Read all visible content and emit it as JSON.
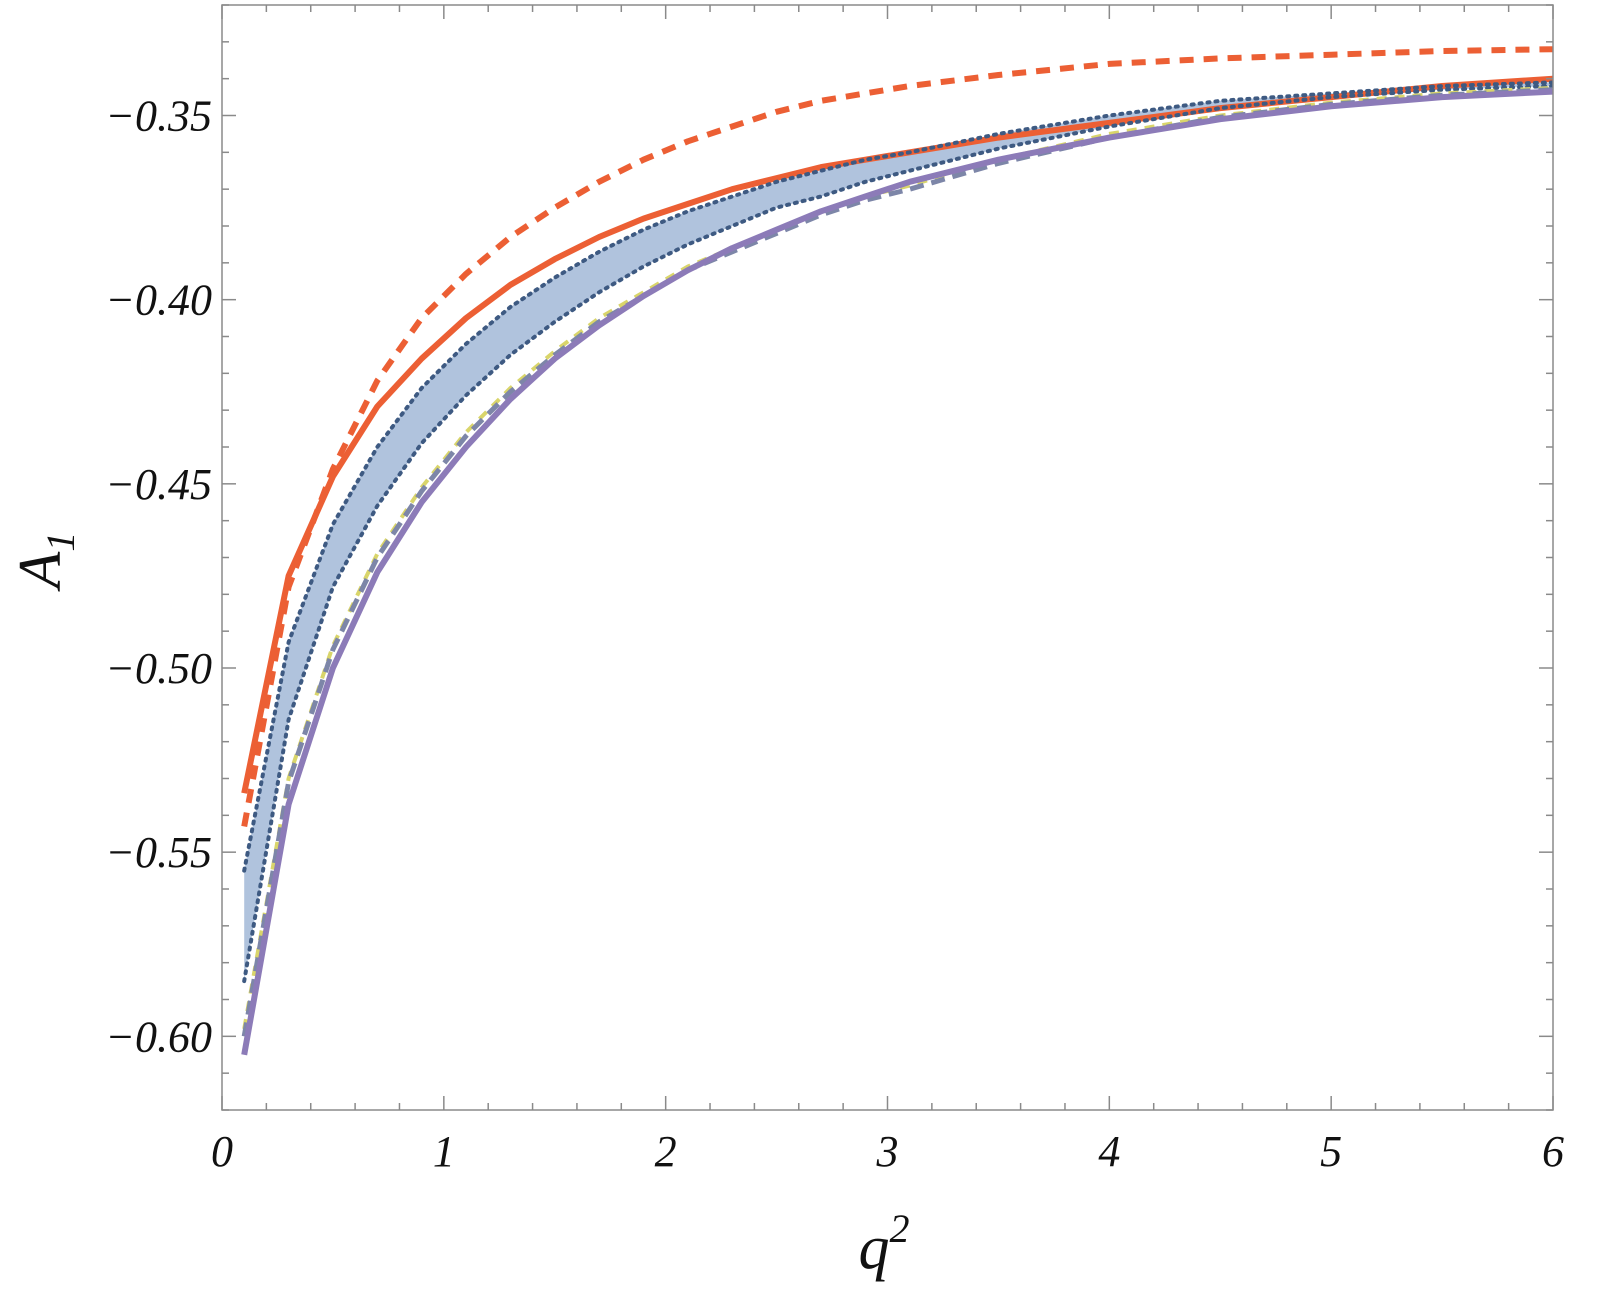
{
  "chart_data": {
    "type": "line",
    "xlabel": "q",
    "xlabel_superscript": "2",
    "ylabel": "A",
    "ylabel_subscript": "1",
    "xlim": [
      0,
      6
    ],
    "ylim": [
      -0.62,
      -0.32
    ],
    "grid": false,
    "legend": "none",
    "x_ticks": [
      0,
      1,
      2,
      3,
      4,
      5,
      6
    ],
    "x_tick_labels": [
      "0",
      "1",
      "2",
      "3",
      "4",
      "5",
      "6"
    ],
    "y_ticks": [
      -0.6,
      -0.55,
      -0.5,
      -0.45,
      -0.4,
      -0.35
    ],
    "y_tick_labels": [
      "−0.60",
      "−0.55",
      "−0.50",
      "−0.45",
      "−0.40",
      "−0.35"
    ],
    "x": [
      0.1,
      0.3,
      0.5,
      0.7,
      0.9,
      1.1,
      1.3,
      1.5,
      1.7,
      1.9,
      2.1,
      2.3,
      2.5,
      2.7,
      2.9,
      3.1,
      3.5,
      4.0,
      4.5,
      5.0,
      5.5,
      6.0
    ],
    "band": {
      "color": "#b0c3dd",
      "upper": [
        -0.555,
        -0.493,
        -0.461,
        -0.44,
        -0.424,
        -0.412,
        -0.402,
        -0.394,
        -0.387,
        -0.381,
        -0.376,
        -0.372,
        -0.368,
        -0.365,
        -0.362,
        -0.36,
        -0.355,
        -0.35,
        -0.346,
        -0.344,
        -0.342,
        -0.341
      ],
      "lower": [
        -0.585,
        -0.514,
        -0.478,
        -0.456,
        -0.439,
        -0.426,
        -0.415,
        -0.406,
        -0.398,
        -0.391,
        -0.385,
        -0.38,
        -0.375,
        -0.372,
        -0.368,
        -0.365,
        -0.359,
        -0.353,
        -0.348,
        -0.345,
        -0.343,
        -0.342
      ]
    },
    "series": [
      {
        "style": "dashed",
        "color": "#ec5f34",
        "width": 6,
        "dash": "14,10",
        "x": [
          0.1,
          0.3,
          0.5,
          0.7,
          0.9,
          1.1,
          1.3,
          1.5,
          1.7,
          1.9,
          2.1,
          2.3,
          2.5,
          2.7,
          2.9,
          3.1,
          3.5,
          4.0,
          4.5,
          5.0,
          5.5,
          6.0
        ],
        "values": [
          -0.543,
          -0.478,
          -0.446,
          -0.422,
          -0.405,
          -0.393,
          -0.383,
          -0.375,
          -0.368,
          -0.362,
          -0.357,
          -0.353,
          -0.349,
          -0.346,
          -0.344,
          -0.342,
          -0.339,
          -0.336,
          -0.3345,
          -0.3335,
          -0.3325,
          -0.332
        ]
      },
      {
        "style": "solid",
        "color": "#ec5f34",
        "width": 6,
        "x": [
          0.1,
          0.3,
          0.5,
          0.7,
          0.9,
          1.1,
          1.3,
          1.5,
          1.7,
          1.9,
          2.1,
          2.3,
          2.5,
          2.7,
          2.9,
          3.1,
          3.5,
          4.0,
          4.5,
          5.0,
          5.5,
          6.0
        ],
        "values": [
          -0.534,
          -0.475,
          -0.448,
          -0.429,
          -0.416,
          -0.405,
          -0.396,
          -0.389,
          -0.383,
          -0.378,
          -0.374,
          -0.37,
          -0.367,
          -0.364,
          -0.362,
          -0.36,
          -0.356,
          -0.352,
          -0.348,
          -0.345,
          -0.342,
          -0.34
        ]
      },
      {
        "style": "dotted",
        "color": "#3e5a82",
        "width": 4,
        "dash": "2,6",
        "x": [
          0.1,
          0.3,
          0.5,
          0.7,
          0.9,
          1.1,
          1.3,
          1.5,
          1.7,
          1.9,
          2.1,
          2.3,
          2.5,
          2.7,
          2.9,
          3.1,
          3.5,
          4.0,
          4.5,
          5.0,
          5.5,
          6.0
        ],
        "values": [
          -0.555,
          -0.493,
          -0.461,
          -0.44,
          -0.424,
          -0.412,
          -0.402,
          -0.394,
          -0.387,
          -0.381,
          -0.376,
          -0.372,
          -0.368,
          -0.365,
          -0.362,
          -0.36,
          -0.355,
          -0.35,
          -0.346,
          -0.344,
          -0.342,
          -0.341
        ]
      },
      {
        "style": "dotted",
        "color": "#3e5a82",
        "width": 4,
        "dash": "2,6",
        "x": [
          0.1,
          0.3,
          0.5,
          0.7,
          0.9,
          1.1,
          1.3,
          1.5,
          1.7,
          1.9,
          2.1,
          2.3,
          2.5,
          2.7,
          2.9,
          3.1,
          3.5,
          4.0,
          4.5,
          5.0,
          5.5,
          6.0
        ],
        "values": [
          -0.585,
          -0.514,
          -0.478,
          -0.456,
          -0.439,
          -0.426,
          -0.415,
          -0.406,
          -0.398,
          -0.391,
          -0.385,
          -0.38,
          -0.375,
          -0.372,
          -0.368,
          -0.365,
          -0.359,
          -0.353,
          -0.348,
          -0.345,
          -0.343,
          -0.342
        ]
      },
      {
        "style": "dashed",
        "color": "#d9d56b",
        "width": 4,
        "dash": "10,8",
        "x": [
          0.1,
          0.3,
          0.5,
          0.7,
          0.9,
          1.1,
          1.3,
          1.5,
          1.7,
          1.9,
          2.1,
          2.3,
          2.5,
          2.7,
          2.9,
          3.1,
          3.5,
          4.0,
          4.5,
          5.0,
          5.5,
          6.0
        ],
        "values": [
          -0.598,
          -0.53,
          -0.494,
          -0.469,
          -0.451,
          -0.436,
          -0.424,
          -0.414,
          -0.405,
          -0.398,
          -0.391,
          -0.386,
          -0.381,
          -0.376,
          -0.372,
          -0.369,
          -0.362,
          -0.355,
          -0.35,
          -0.3465,
          -0.344,
          -0.3425
        ]
      },
      {
        "style": "dashed",
        "color": "#7d86a8",
        "width": 5,
        "dash": "14,8",
        "x": [
          0.1,
          0.3,
          0.5,
          0.7,
          0.9,
          1.1,
          1.3,
          1.5,
          1.7,
          1.9,
          2.1,
          2.3,
          2.5,
          2.7,
          2.9,
          3.1,
          3.5,
          4.0,
          4.5,
          5.0,
          5.5,
          6.0
        ],
        "values": [
          -0.6,
          -0.531,
          -0.495,
          -0.47,
          -0.452,
          -0.437,
          -0.425,
          -0.415,
          -0.406,
          -0.399,
          -0.392,
          -0.387,
          -0.382,
          -0.377,
          -0.373,
          -0.37,
          -0.363,
          -0.356,
          -0.3505,
          -0.347,
          -0.3445,
          -0.343
        ]
      },
      {
        "style": "solid",
        "color": "#8c7bb8",
        "width": 6,
        "x": [
          0.1,
          0.3,
          0.5,
          0.7,
          0.9,
          1.1,
          1.3,
          1.5,
          1.7,
          1.9,
          2.1,
          2.3,
          2.5,
          2.7,
          2.9,
          3.1,
          3.5,
          4.0,
          4.5,
          5.0,
          5.5,
          6.0
        ],
        "values": [
          -0.605,
          -0.537,
          -0.5,
          -0.474,
          -0.455,
          -0.44,
          -0.427,
          -0.416,
          -0.407,
          -0.399,
          -0.392,
          -0.386,
          -0.381,
          -0.376,
          -0.372,
          -0.368,
          -0.362,
          -0.356,
          -0.351,
          -0.3475,
          -0.345,
          -0.3435
        ]
      }
    ]
  }
}
